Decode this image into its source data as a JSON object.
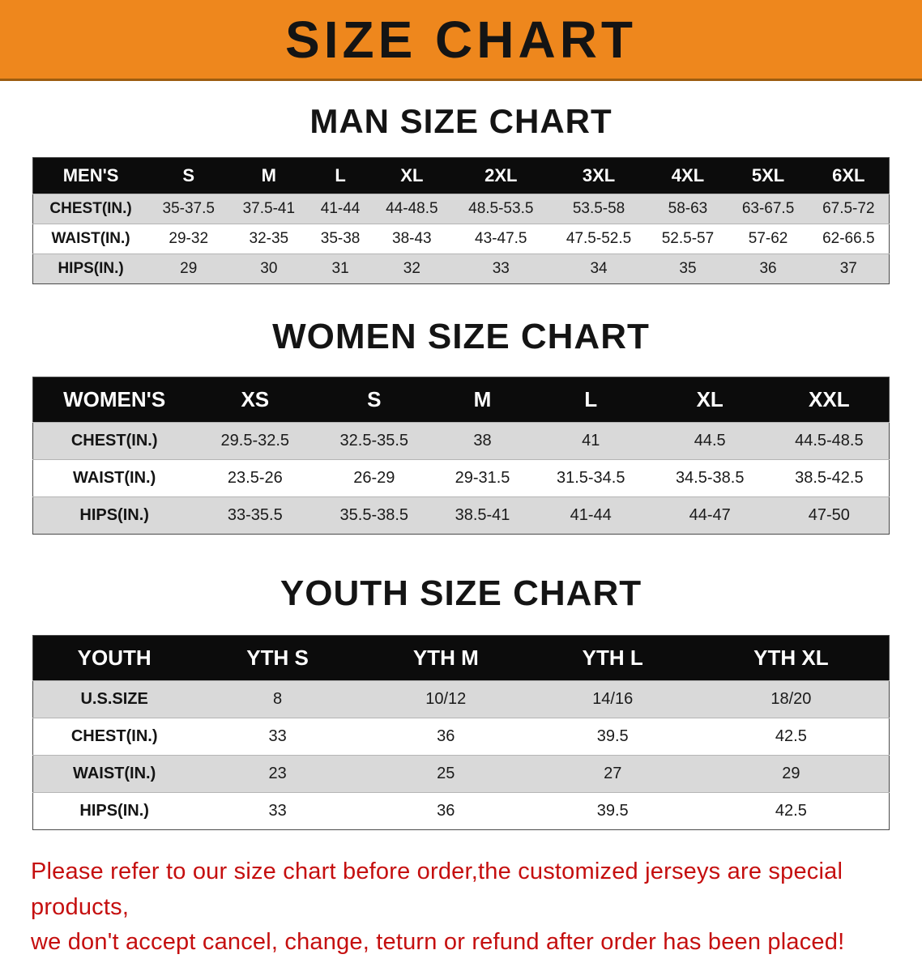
{
  "banner": {
    "title": "SIZE CHART"
  },
  "sections": [
    {
      "title": "MAN SIZE CHART",
      "table": {
        "header": [
          "MEN'S",
          "S",
          "M",
          "L",
          "XL",
          "2XL",
          "3XL",
          "4XL",
          "5XL",
          "6XL"
        ],
        "rows": [
          {
            "label": "CHEST(IN.)",
            "values": [
              "35-37.5",
              "37.5-41",
              "41-44",
              "44-48.5",
              "48.5-53.5",
              "53.5-58",
              "58-63",
              "63-67.5",
              "67.5-72"
            ]
          },
          {
            "label": "WAIST(IN.)",
            "values": [
              "29-32",
              "32-35",
              "35-38",
              "38-43",
              "43-47.5",
              "47.5-52.5",
              "52.5-57",
              "57-62",
              "62-66.5"
            ]
          },
          {
            "label": "HIPS(IN.)",
            "values": [
              "29",
              "30",
              "31",
              "32",
              "33",
              "34",
              "35",
              "36",
              "37"
            ]
          }
        ]
      }
    },
    {
      "title": "WOMEN SIZE CHART",
      "table": {
        "header": [
          "WOMEN'S",
          "XS",
          "S",
          "M",
          "L",
          "XL",
          "XXL"
        ],
        "rows": [
          {
            "label": "CHEST(IN.)",
            "values": [
              "29.5-32.5",
              "32.5-35.5",
              "38",
              "41",
              "44.5",
              "44.5-48.5"
            ]
          },
          {
            "label": "WAIST(IN.)",
            "values": [
              "23.5-26",
              "26-29",
              "29-31.5",
              "31.5-34.5",
              "34.5-38.5",
              "38.5-42.5"
            ]
          },
          {
            "label": "HIPS(IN.)",
            "values": [
              "33-35.5",
              "35.5-38.5",
              "38.5-41",
              "41-44",
              "44-47",
              "47-50"
            ]
          }
        ]
      }
    },
    {
      "title": "YOUTH SIZE CHART",
      "table": {
        "header": [
          "YOUTH",
          "YTH S",
          "YTH M",
          "YTH L",
          "YTH XL"
        ],
        "rows": [
          {
            "label": "U.S.SIZE",
            "values": [
              "8",
              "10/12",
              "14/16",
              "18/20"
            ]
          },
          {
            "label": "CHEST(IN.)",
            "values": [
              "33",
              "36",
              "39.5",
              "42.5"
            ]
          },
          {
            "label": "WAIST(IN.)",
            "values": [
              "23",
              "25",
              "27",
              "29"
            ]
          },
          {
            "label": "HIPS(IN.)",
            "values": [
              "33",
              "36",
              "39.5",
              "42.5"
            ]
          }
        ]
      }
    }
  ],
  "footer": {
    "line1": "Please refer to our size chart before order,the customized jerseys are special products,",
    "line2": "we don't accept cancel, change, teturn or refund after order has been placed!"
  },
  "colors": {
    "banner_bg": "#ee871d",
    "table_header_bg": "#0c0c0c",
    "row_alt_bg": "#d9d9d9",
    "footer_text": "#c50f0f"
  }
}
